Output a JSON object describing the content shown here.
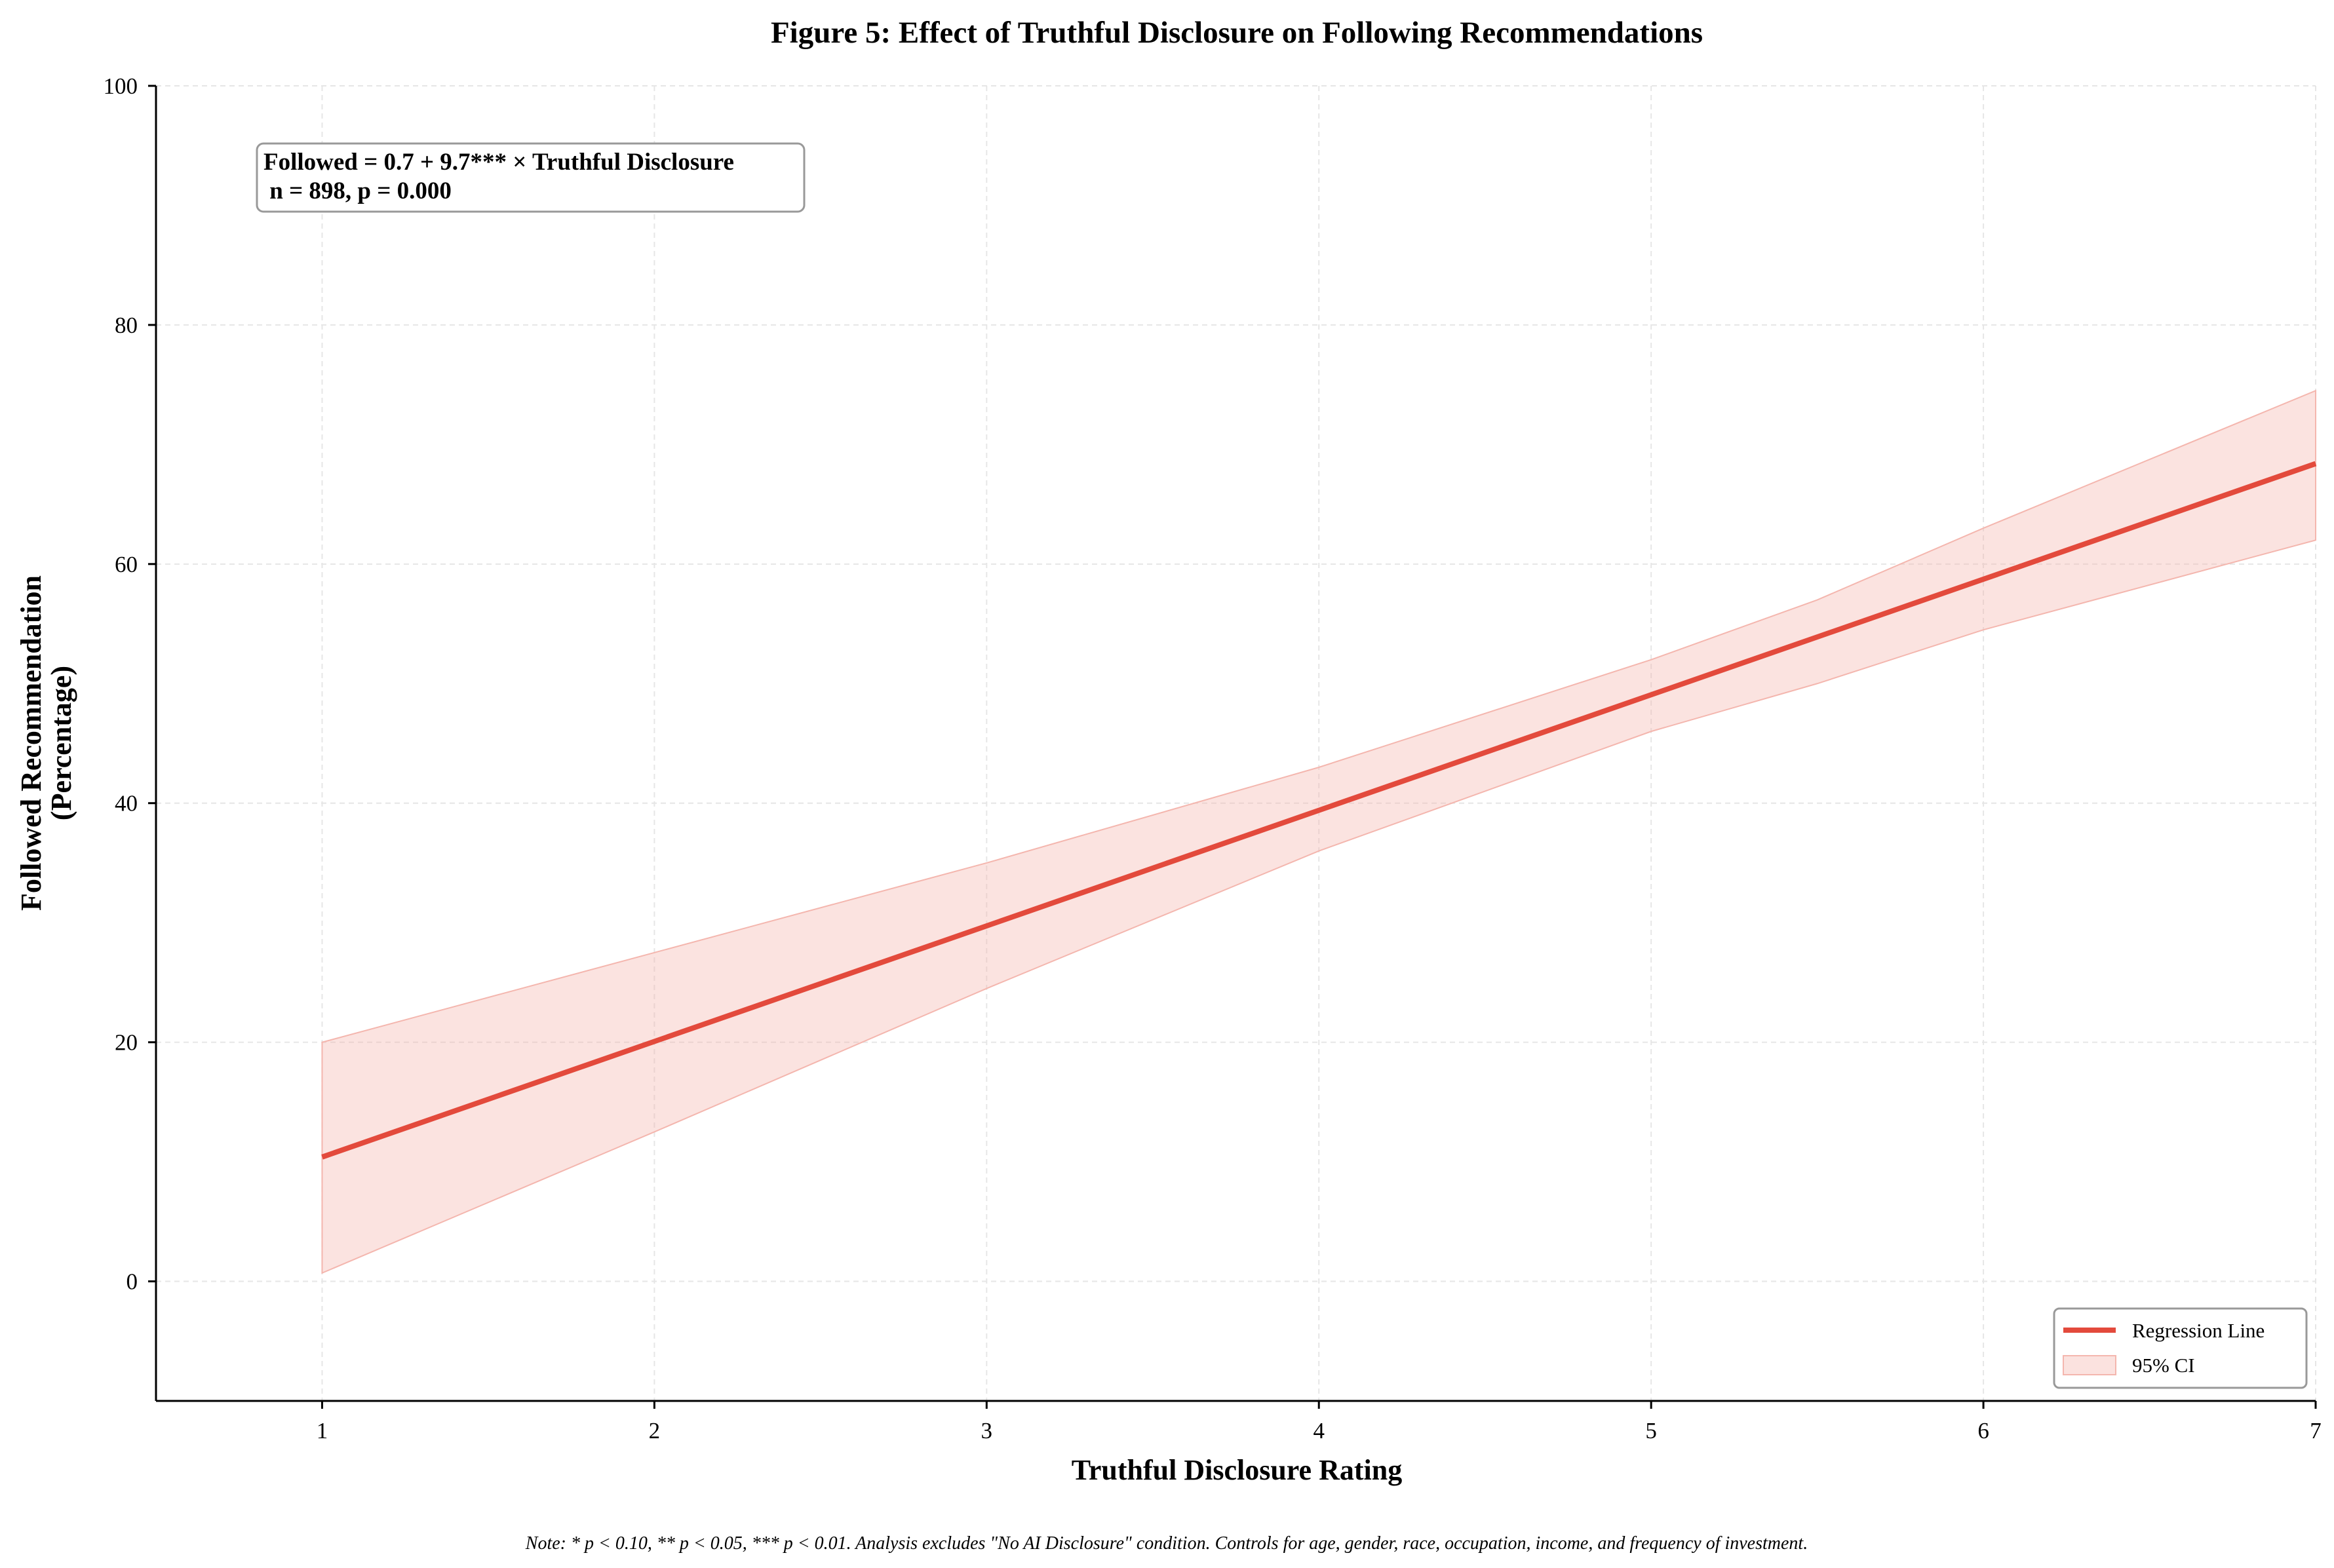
{
  "chart_data": {
    "type": "line",
    "title": "Figure 5: Effect of Truthful Disclosure on Following Recommendations",
    "xlabel": "Truthful Disclosure Rating",
    "ylabel_line1": "Followed Recommendation",
    "ylabel_line2": "(Percentage)",
    "xlim": [
      0.5,
      7
    ],
    "ylim": [
      -10,
      100
    ],
    "xticks": [
      1,
      2,
      3,
      4,
      5,
      6,
      7
    ],
    "yticks": [
      0,
      20,
      40,
      60,
      80,
      100
    ],
    "grid": true,
    "series": [
      {
        "name": "Regression Line",
        "x": [
          1,
          7
        ],
        "y": [
          10.4,
          68.4
        ],
        "color": "#e34a3c"
      }
    ],
    "confidence_band": {
      "name": "95% CI",
      "color": "#f4b6ae",
      "x": [
        1,
        2,
        3,
        4,
        5,
        5.5,
        6,
        7
      ],
      "upper": [
        20,
        27.5,
        35,
        43,
        52,
        57,
        63,
        74.5
      ],
      "lower": [
        0.7,
        12.5,
        24.5,
        36,
        46,
        50,
        54.5,
        62
      ]
    },
    "annotation": {
      "line1": "Followed = 0.7 + 9.7*** × Truthful Disclosure",
      "line2": " n = 898, p = 0.000"
    },
    "legend": {
      "placement": "lower-right",
      "entries": [
        "Regression Line",
        "95% CI"
      ]
    },
    "note": "Note: * p < 0.10, ** p < 0.05, *** p < 0.01. Analysis excludes \"No AI Disclosure\" condition. Controls for age, gender, race, occupation, income, and frequency of investment."
  }
}
